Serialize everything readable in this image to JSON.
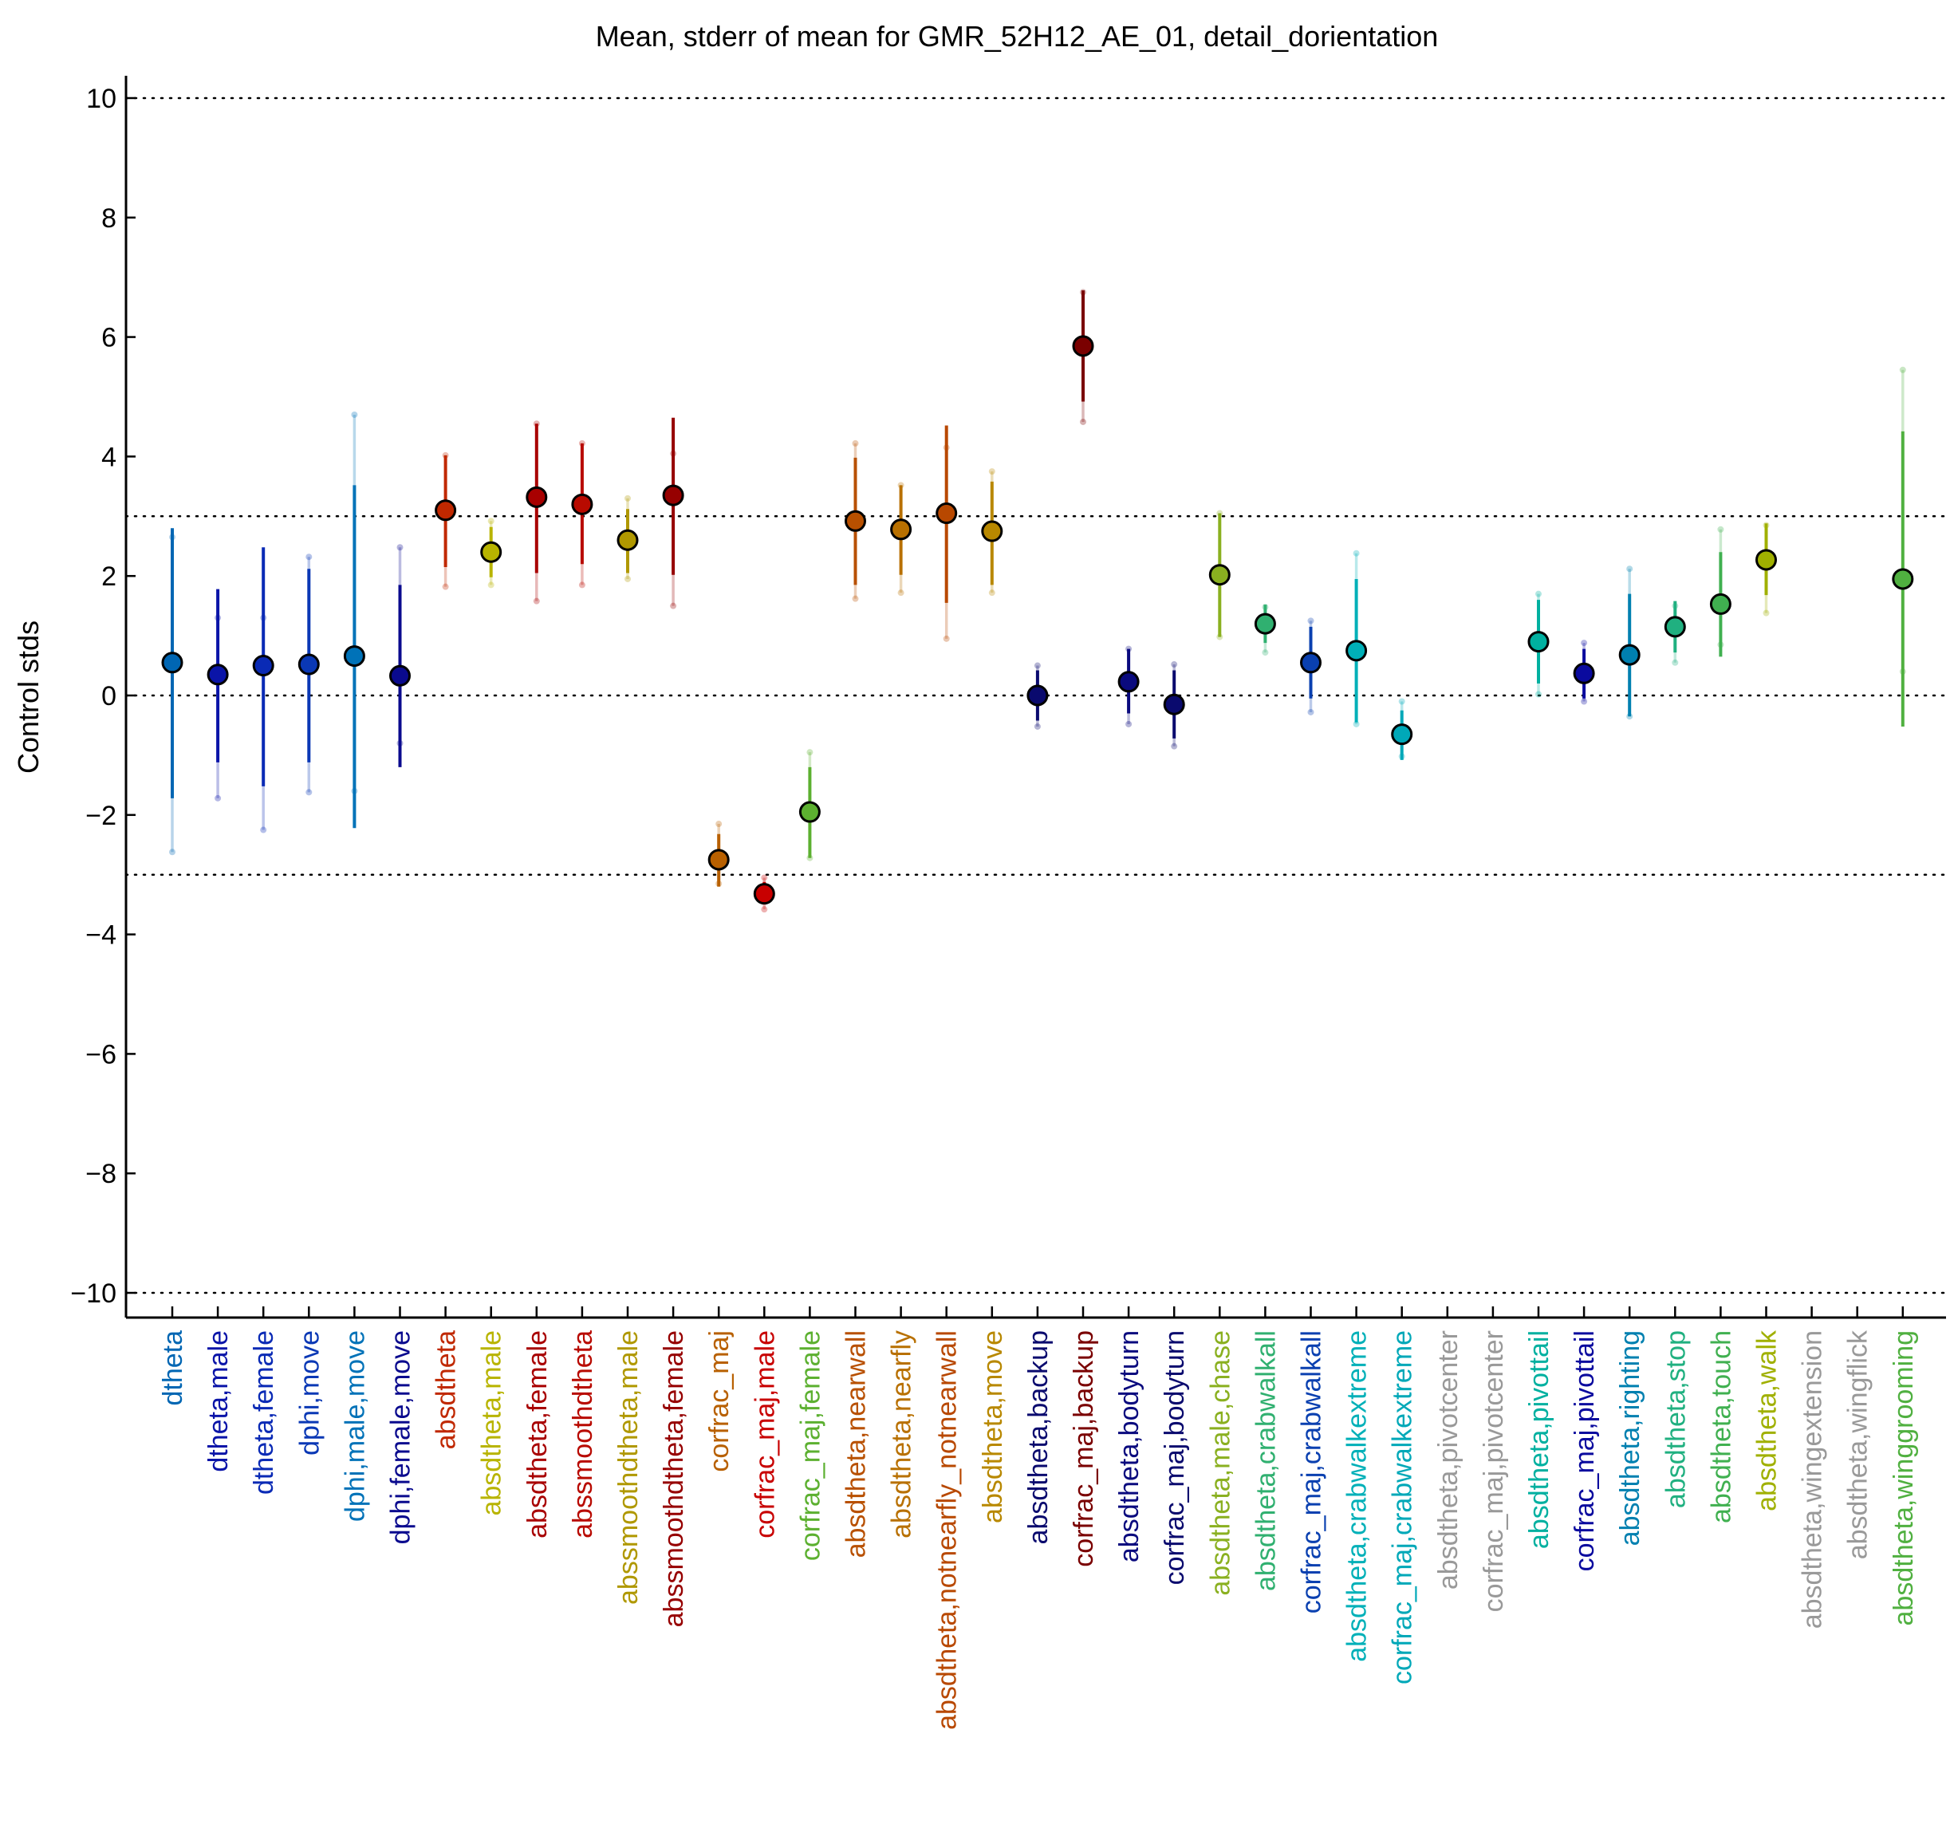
{
  "chart_data": {
    "type": "scatter",
    "title": "Mean, stderr of mean for GMR_52H12_AE_01, detail_dorientation",
    "ylabel": "Control stds",
    "xlabel": "",
    "ylim": [
      -10.2,
      10.2
    ],
    "yticks": [
      -10,
      -8,
      -6,
      -4,
      -2,
      0,
      2,
      4,
      6,
      8,
      10
    ],
    "yticklabels": [
      "−10",
      "−8",
      "−6",
      "−4",
      "−2",
      "0",
      "2",
      "4",
      "6",
      "8",
      "10"
    ],
    "reference_lines": [
      -10,
      -3,
      0,
      3,
      10
    ],
    "grid": false,
    "categories": [
      {
        "label": "dtheta",
        "color": "#0066b3",
        "mean": 0.55,
        "se_lo": -1.72,
        "se_hi": 2.8,
        "ext_lo": -2.62,
        "ext_hi": 2.65
      },
      {
        "label": "dtheta,male",
        "color": "#0a14a8",
        "mean": 0.35,
        "se_lo": -1.12,
        "se_hi": 1.78,
        "ext_lo": -1.72,
        "ext_hi": 1.3
      },
      {
        "label": "dtheta,female",
        "color": "#0a2ab5",
        "mean": 0.5,
        "se_lo": -1.52,
        "se_hi": 2.48,
        "ext_lo": -2.25,
        "ext_hi": 1.3
      },
      {
        "label": "dphi,move",
        "color": "#0a38b5",
        "mean": 0.52,
        "se_lo": -1.12,
        "se_hi": 2.12,
        "ext_lo": -1.62,
        "ext_hi": 2.32
      },
      {
        "label": "dphi,male,move",
        "color": "#0072b8",
        "mean": 0.66,
        "se_lo": -2.22,
        "se_hi": 3.52,
        "ext_lo": -1.6,
        "ext_hi": 4.7
      },
      {
        "label": "dphi,female,move",
        "color": "#0a0a8e",
        "mean": 0.33,
        "se_lo": -1.2,
        "se_hi": 1.85,
        "ext_lo": -0.8,
        "ext_hi": 2.48
      },
      {
        "label": "absdtheta",
        "color": "#c02800",
        "mean": 3.1,
        "se_lo": 2.15,
        "se_hi": 4.02,
        "ext_lo": 1.82,
        "ext_hi": 4.02
      },
      {
        "label": "absdtheta,male",
        "color": "#b8b400",
        "mean": 2.4,
        "se_lo": 1.98,
        "se_hi": 2.82,
        "ext_lo": 1.85,
        "ext_hi": 2.92
      },
      {
        "label": "absdtheta,female",
        "color": "#a80000",
        "mean": 3.32,
        "se_lo": 2.05,
        "se_hi": 4.55,
        "ext_lo": 1.58,
        "ext_hi": 4.55
      },
      {
        "label": "abssmoothdtheta",
        "color": "#b80a00",
        "mean": 3.2,
        "se_lo": 2.2,
        "se_hi": 4.22,
        "ext_lo": 1.85,
        "ext_hi": 4.22
      },
      {
        "label": "abssmoothdtheta,male",
        "color": "#b09800",
        "mean": 2.6,
        "se_lo": 2.05,
        "se_hi": 3.12,
        "ext_lo": 1.95,
        "ext_hi": 3.3
      },
      {
        "label": "abssmoothdtheta,female",
        "color": "#960000",
        "mean": 3.35,
        "se_lo": 2.02,
        "se_hi": 4.65,
        "ext_lo": 1.5,
        "ext_hi": 4.05
      },
      {
        "label": "corfrac_maj",
        "color": "#b86000",
        "mean": -2.75,
        "se_lo": -3.2,
        "se_hi": -2.32,
        "ext_lo": -3.15,
        "ext_hi": -2.15
      },
      {
        "label": "corfrac_maj,male",
        "color": "#c80000",
        "mean": -3.32,
        "se_lo": -3.5,
        "se_hi": -3.12,
        "ext_lo": -3.58,
        "ext_hi": -3.05
      },
      {
        "label": "corfrac_maj,female",
        "color": "#5cb030",
        "mean": -1.95,
        "se_lo": -2.72,
        "se_hi": -1.2,
        "ext_lo": -2.72,
        "ext_hi": -0.95
      },
      {
        "label": "absdtheta,nearwall",
        "color": "#b85000",
        "mean": 2.92,
        "se_lo": 1.85,
        "se_hi": 3.98,
        "ext_lo": 1.62,
        "ext_hi": 4.22
      },
      {
        "label": "absdtheta,nearfly",
        "color": "#b87000",
        "mean": 2.78,
        "se_lo": 2.02,
        "se_hi": 3.52,
        "ext_lo": 1.72,
        "ext_hi": 3.52
      },
      {
        "label": "absdtheta,notnearfly_notnearwall",
        "color": "#b84800",
        "mean": 3.05,
        "se_lo": 1.55,
        "se_hi": 4.52,
        "ext_lo": 0.95,
        "ext_hi": 4.15
      },
      {
        "label": "absdtheta,move",
        "color": "#b88800",
        "mean": 2.75,
        "se_lo": 1.85,
        "se_hi": 3.58,
        "ext_lo": 1.72,
        "ext_hi": 3.75
      },
      {
        "label": "absdtheta,backup",
        "color": "#0a0a6e",
        "mean": 0.0,
        "se_lo": -0.42,
        "se_hi": 0.42,
        "ext_lo": -0.52,
        "ext_hi": 0.5
      },
      {
        "label": "corfrac_maj,backup",
        "color": "#7a0000",
        "mean": 5.85,
        "se_lo": 4.92,
        "se_hi": 6.78,
        "ext_lo": 4.58,
        "ext_hi": 6.75
      },
      {
        "label": "absdtheta,bodyturn",
        "color": "#0a0a7e",
        "mean": 0.23,
        "se_lo": -0.3,
        "se_hi": 0.78,
        "ext_lo": -0.48,
        "ext_hi": 0.78
      },
      {
        "label": "corfrac_maj,bodyturn",
        "color": "#0a0a6e",
        "mean": -0.15,
        "se_lo": -0.72,
        "se_hi": 0.42,
        "ext_lo": -0.85,
        "ext_hi": 0.52
      },
      {
        "label": "absdtheta,male,chase",
        "color": "#8ab020",
        "mean": 2.02,
        "se_lo": 0.98,
        "se_hi": 3.05,
        "ext_lo": 0.98,
        "ext_hi": 3.05
      },
      {
        "label": "absdtheta,crabwalkall",
        "color": "#30b070",
        "mean": 1.2,
        "se_lo": 0.88,
        "se_hi": 1.52,
        "ext_lo": 0.72,
        "ext_hi": 1.48
      },
      {
        "label": "corfrac_maj,crabwalkall",
        "color": "#0a40b0",
        "mean": 0.55,
        "se_lo": -0.05,
        "se_hi": 1.15,
        "ext_lo": -0.28,
        "ext_hi": 1.25
      },
      {
        "label": "absdtheta,crabwalkextreme",
        "color": "#00b0b8",
        "mean": 0.75,
        "se_lo": -0.45,
        "se_hi": 1.95,
        "ext_lo": -0.48,
        "ext_hi": 2.38
      },
      {
        "label": "corfrac_maj,crabwalkextreme",
        "color": "#00a8b8",
        "mean": -0.65,
        "se_lo": -1.08,
        "se_hi": -0.25,
        "ext_lo": -1.02,
        "ext_hi": -0.1
      },
      {
        "label": "absdtheta,pivotcenter",
        "color": "#999999",
        "mean": null
      },
      {
        "label": "corfrac_maj,pivotcenter",
        "color": "#999999",
        "mean": null
      },
      {
        "label": "absdtheta,pivottail",
        "color": "#00b0a0",
        "mean": 0.9,
        "se_lo": 0.2,
        "se_hi": 1.6,
        "ext_lo": 0.02,
        "ext_hi": 1.7
      },
      {
        "label": "corfrac_maj,pivottail",
        "color": "#0a0a9e",
        "mean": 0.37,
        "se_lo": -0.05,
        "se_hi": 0.78,
        "ext_lo": -0.1,
        "ext_hi": 0.88
      },
      {
        "label": "absdtheta,righting",
        "color": "#0080b0",
        "mean": 0.68,
        "se_lo": -0.35,
        "se_hi": 1.7,
        "ext_lo": -0.35,
        "ext_hi": 2.12
      },
      {
        "label": "absdtheta,stop",
        "color": "#20b080",
        "mean": 1.15,
        "se_lo": 0.72,
        "se_hi": 1.58,
        "ext_lo": 0.55,
        "ext_hi": 1.5
      },
      {
        "label": "absdtheta,touch",
        "color": "#40b050",
        "mean": 1.53,
        "se_lo": 0.65,
        "se_hi": 2.4,
        "ext_lo": 0.85,
        "ext_hi": 2.78
      },
      {
        "label": "absdtheta,walk",
        "color": "#a0b000",
        "mean": 2.27,
        "se_lo": 1.68,
        "se_hi": 2.88,
        "ext_lo": 1.38,
        "ext_hi": 2.85
      },
      {
        "label": "absdtheta,wingextension",
        "color": "#999999",
        "mean": null
      },
      {
        "label": "absdtheta,wingflick",
        "color": "#999999",
        "mean": null
      },
      {
        "label": "absdtheta,winggrooming",
        "color": "#50b040",
        "mean": 1.95,
        "se_lo": -0.52,
        "se_hi": 4.42,
        "ext_lo": 0.4,
        "ext_hi": 5.45
      }
    ]
  }
}
